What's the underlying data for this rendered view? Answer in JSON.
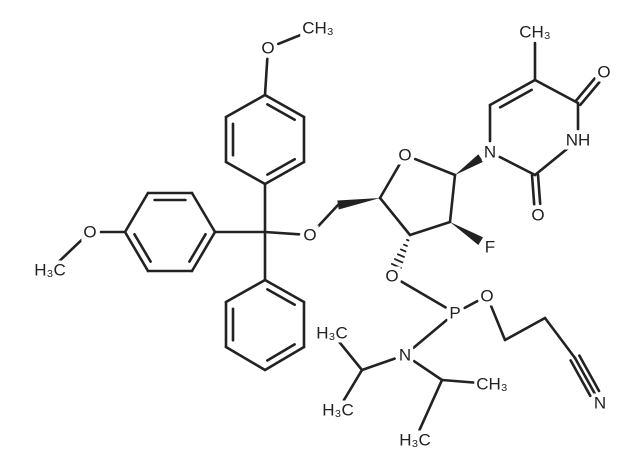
{
  "atoms": [
    {
      "label": "O"
    },
    {
      "label": "CH₃"
    },
    {
      "label": "O"
    },
    {
      "label": "H₃C"
    },
    {
      "label": "O"
    },
    {
      "label": "O"
    },
    {
      "label": "N"
    },
    {
      "label": "NH"
    },
    {
      "label": "O"
    },
    {
      "label": "O"
    },
    {
      "label": "CH₃"
    },
    {
      "label": "F"
    },
    {
      "label": "O"
    },
    {
      "label": "P"
    },
    {
      "label": "O"
    },
    {
      "label": "N"
    },
    {
      "label": "H₃C"
    },
    {
      "label": "H₃C"
    },
    {
      "label": "CH₃"
    },
    {
      "label": "H₃C"
    },
    {
      "label": "N"
    }
  ]
}
